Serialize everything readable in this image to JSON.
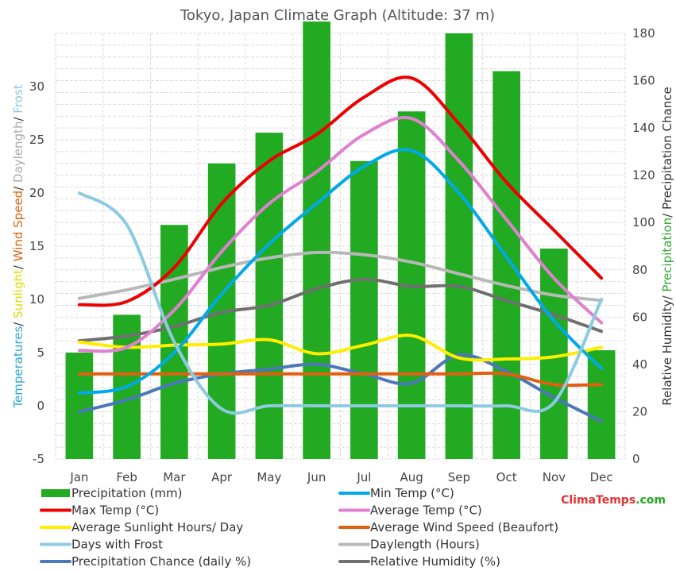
{
  "chart_data": {
    "type": "bar",
    "title": "Tokyo, Japan Climate Graph (Altitude: 37 m)",
    "categories": [
      "Jan",
      "Feb",
      "Mar",
      "Apr",
      "May",
      "Jun",
      "Jul",
      "Aug",
      "Sep",
      "Oct",
      "Nov",
      "Dec"
    ],
    "left_axis": {
      "label_parts": [
        {
          "text": "Temperatures",
          "color": "#2ca8d8"
        },
        {
          "text": "/ ",
          "color": "#333333"
        },
        {
          "text": "Sunlight",
          "color": "#e6d800"
        },
        {
          "text": "/ ",
          "color": "#333333"
        },
        {
          "text": "Wind Speed",
          "color": "#e06010"
        },
        {
          "text": "/ ",
          "color": "#333333"
        },
        {
          "text": "Daylength",
          "color": "#aaaaaa"
        },
        {
          "text": "/ ",
          "color": "#333333"
        },
        {
          "text": "Frost",
          "color": "#8ecae0"
        }
      ],
      "ticks": [
        "-5",
        "0",
        "5",
        "10",
        "15",
        "20",
        "25",
        "30"
      ],
      "ylim": [
        -5,
        35
      ]
    },
    "right_axis": {
      "label_parts": [
        {
          "text": "Relative Humidity",
          "color": "#333333"
        },
        {
          "text": "/ ",
          "color": "#333333"
        },
        {
          "text": "Precipitation",
          "color": "#2eaa2e"
        },
        {
          "text": "/ ",
          "color": "#333333"
        },
        {
          "text": "Precipitation Chance",
          "color": "#333333"
        }
      ],
      "ticks": [
        "0",
        "20",
        "40",
        "60",
        "80",
        "100",
        "120",
        "140",
        "160",
        "180"
      ],
      "ylim": [
        0,
        180
      ]
    },
    "bars": {
      "name": "Precipitation (mm)",
      "axis": "right",
      "color": "#22aa22",
      "values": [
        45,
        61,
        99,
        125,
        138,
        185,
        126,
        147,
        180,
        164,
        89,
        46
      ]
    },
    "series": [
      {
        "name": "Min Temp (°C)",
        "axis": "left",
        "color": "#00aae8",
        "values": [
          1.2,
          1.8,
          5.0,
          10.5,
          15.2,
          19.0,
          22.5,
          24.0,
          20.0,
          14.0,
          8.0,
          3.5
        ]
      },
      {
        "name": "Max Temp (°C)",
        "axis": "left",
        "color": "#ee0000",
        "values": [
          9.5,
          9.8,
          13.0,
          19.0,
          23.0,
          25.5,
          29.0,
          30.8,
          26.5,
          21.0,
          16.5,
          12.0
        ]
      },
      {
        "name": "Average Temp (°C)",
        "axis": "left",
        "color": "#e080d0",
        "values": [
          5.2,
          5.5,
          9.0,
          14.5,
          19.0,
          22.0,
          25.5,
          27.0,
          23.0,
          17.5,
          12.0,
          7.8
        ]
      },
      {
        "name": "Average Sunlight Hours/ Day",
        "axis": "left",
        "color": "#ffee00",
        "values": [
          6.0,
          5.5,
          5.7,
          5.8,
          6.2,
          4.9,
          5.7,
          6.6,
          4.5,
          4.4,
          4.6,
          5.5
        ]
      },
      {
        "name": "Average Wind Speed (Beaufort)",
        "axis": "left",
        "color": "#e06010",
        "values": [
          3,
          3,
          3,
          3,
          3,
          3,
          3,
          3,
          3,
          3,
          2,
          2
        ]
      },
      {
        "name": "Days with Frost",
        "axis": "left",
        "color": "#8ecae0",
        "values": [
          20.0,
          17.0,
          6.0,
          -0.3,
          0,
          0,
          0,
          0,
          0,
          0,
          0.3,
          10.0
        ]
      },
      {
        "name": "Daylength (Hours)",
        "axis": "left",
        "color": "#b8b8b8",
        "values": [
          10.1,
          10.9,
          11.9,
          13.0,
          13.9,
          14.4,
          14.2,
          13.5,
          12.4,
          11.3,
          10.4,
          9.9
        ]
      },
      {
        "name": "Precipitation Chance (daily %)",
        "axis": "right",
        "color": "#4a78b8",
        "values": [
          20,
          25,
          32,
          36,
          38,
          40,
          36,
          32,
          44,
          37,
          26,
          16
        ]
      },
      {
        "name": "Relative Humidity (%)",
        "axis": "right",
        "color": "#707070",
        "values": [
          50,
          52,
          56,
          62,
          65,
          72,
          76,
          73,
          73,
          67,
          61,
          54
        ]
      }
    ],
    "brand": {
      "part1": "Clima",
      "part1_color": "#e83030",
      "part2": "Temps",
      "part2_color": "#e83030",
      "part3": ".com",
      "part3_color": "#22aa22"
    }
  }
}
